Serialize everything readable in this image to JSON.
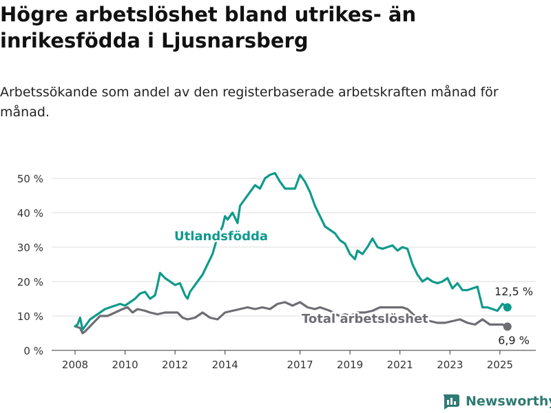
{
  "page": {
    "title": "Högre arbetslöshet bland utrikes- än inrikesfödda i Ljusnarsberg",
    "subtitle": "Arbetssökande som andel av den registerbaserade arbetskraften månad för månad.",
    "brand": "Newsworthy"
  },
  "colors": {
    "utlandsfodda": "#0e9a8c",
    "total": "#6d6d74",
    "brand": "#2f7a72"
  },
  "chart_data": {
    "type": "line",
    "xlabel": "",
    "ylabel": "",
    "x_range": [
      2008.0,
      2025.5
    ],
    "ylim": [
      0,
      50
    ],
    "y_ticks": [
      0,
      10,
      20,
      30,
      40,
      50
    ],
    "y_tick_labels": [
      "0 %",
      "10 %",
      "20 %",
      "30 %",
      "40 %",
      "50 %"
    ],
    "x_ticks": [
      2008,
      2010,
      2012,
      2014,
      2017,
      2019,
      2021,
      2023,
      2025
    ],
    "x_tick_labels": [
      "2008",
      "2010",
      "2012",
      "2014",
      "2017",
      "2019",
      "2021",
      "2023",
      "2025"
    ],
    "grid": true,
    "series": [
      {
        "name": "Utlandsfödda",
        "label": "Utlandsfödda",
        "end_label": "12,5 %",
        "x": [
          2008.0,
          2008.1,
          2008.2,
          2008.3,
          2008.4,
          2008.5,
          2008.6,
          2008.8,
          2009.0,
          2009.2,
          2009.4,
          2009.6,
          2009.8,
          2010.0,
          2010.2,
          2010.4,
          2010.6,
          2010.8,
          2011.0,
          2011.2,
          2011.3,
          2011.4,
          2011.6,
          2011.8,
          2012.0,
          2012.2,
          2012.4,
          2012.5,
          2012.6,
          2012.7,
          2012.9,
          2013.1,
          2013.3,
          2013.5,
          2013.7,
          2013.9,
          2014.0,
          2014.1,
          2014.3,
          2014.5,
          2014.6,
          2014.8,
          2015.0,
          2015.2,
          2015.4,
          2015.6,
          2015.8,
          2016.0,
          2016.2,
          2016.4,
          2016.6,
          2016.8,
          2017.0,
          2017.2,
          2017.4,
          2017.6,
          2017.8,
          2018.0,
          2018.2,
          2018.4,
          2018.6,
          2018.8,
          2019.0,
          2019.2,
          2019.3,
          2019.5,
          2019.7,
          2019.9,
          2020.1,
          2020.3,
          2020.5,
          2020.7,
          2020.9,
          2021.1,
          2021.3,
          2021.5,
          2021.7,
          2021.9,
          2022.1,
          2022.3,
          2022.5,
          2022.7,
          2022.9,
          2023.1,
          2023.3,
          2023.5,
          2023.7,
          2023.9,
          2024.1,
          2024.3,
          2024.5,
          2024.7,
          2024.9,
          2025.1,
          2025.3
        ],
        "values": [
          7,
          7.5,
          9.5,
          6,
          7,
          8,
          9,
          10,
          11,
          12,
          12.5,
          13,
          13.5,
          13,
          14,
          15,
          16.5,
          17,
          15,
          16,
          19,
          22.5,
          21,
          20,
          19,
          19.5,
          16,
          15,
          17,
          18,
          20,
          22,
          25,
          28,
          33,
          36,
          39,
          38,
          40,
          37,
          42,
          44,
          46,
          48,
          47,
          50,
          51,
          51.5,
          49,
          47,
          47,
          47,
          51,
          49,
          46,
          42,
          39,
          36,
          35,
          34,
          32,
          31,
          28,
          26.5,
          29,
          28,
          30,
          32.5,
          30,
          29.5,
          30,
          30.5,
          29,
          30,
          29.5,
          25,
          22,
          20,
          21,
          20,
          19.5,
          20,
          21,
          18,
          19.5,
          17.5,
          17.5,
          18,
          18.5,
          12.5,
          12.5,
          12,
          11.5,
          13.5,
          12.5
        ]
      },
      {
        "name": "Total arbetslöshet",
        "label": "Total arbetslöshet",
        "end_label": "6,9 %",
        "x": [
          2008.0,
          2008.2,
          2008.3,
          2008.4,
          2008.6,
          2008.8,
          2009.0,
          2009.3,
          2009.6,
          2009.9,
          2010.1,
          2010.3,
          2010.5,
          2010.8,
          2011.0,
          2011.3,
          2011.6,
          2011.9,
          2012.1,
          2012.3,
          2012.5,
          2012.8,
          2013.1,
          2013.4,
          2013.7,
          2014.0,
          2014.3,
          2014.6,
          2014.9,
          2015.2,
          2015.5,
          2015.8,
          2016.1,
          2016.4,
          2016.7,
          2017.0,
          2017.3,
          2017.6,
          2017.8,
          2018.0,
          2018.2,
          2018.4,
          2018.6,
          2018.8,
          2019.0,
          2019.3,
          2019.6,
          2019.9,
          2020.2,
          2020.5,
          2020.8,
          2021.1,
          2021.3,
          2021.6,
          2021.9,
          2022.2,
          2022.5,
          2022.8,
          2023.1,
          2023.4,
          2023.7,
          2024.0,
          2024.3,
          2024.6,
          2024.9,
          2025.1,
          2025.3
        ],
        "values": [
          7,
          6.5,
          5,
          5.5,
          7,
          8.5,
          10,
          10,
          11,
          12,
          12.5,
          11,
          12,
          11.5,
          11,
          10.5,
          11,
          11,
          11,
          9.5,
          9,
          9.5,
          11,
          9.5,
          9,
          11,
          11.5,
          12,
          12.5,
          12,
          12.5,
          12,
          13.5,
          14,
          13,
          14,
          12.5,
          12,
          12.5,
          12,
          11.5,
          10.5,
          10,
          10.5,
          10,
          11,
          11,
          11.5,
          12.5,
          12.5,
          12.5,
          12.5,
          12,
          10,
          8.5,
          8.5,
          8,
          8,
          8.5,
          9,
          8,
          7.5,
          9,
          7.5,
          7.5,
          7.5,
          6.9
        ]
      }
    ]
  }
}
